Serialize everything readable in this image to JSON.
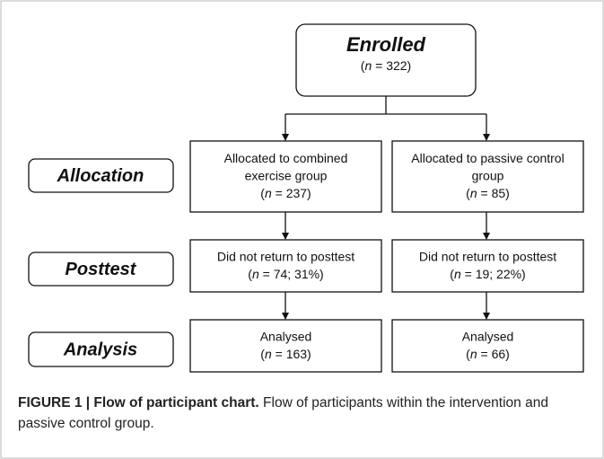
{
  "enrolled": {
    "title": "Enrolled",
    "count": [
      "(",
      "n",
      " = 322)"
    ]
  },
  "rows": [
    {
      "label": "Allocation",
      "left": [
        [
          "Allocated to combined"
        ],
        [
          "exercise group"
        ],
        [
          "(",
          "n",
          " = 237)"
        ]
      ],
      "right": [
        [
          "Allocated to passive control"
        ],
        [
          "group"
        ],
        [
          "(",
          "n",
          " = 85)"
        ]
      ]
    },
    {
      "label": "Posttest",
      "left": [
        [
          "Did not return to posttest"
        ],
        [
          "(",
          "n",
          " = 74; 31%)"
        ]
      ],
      "right": [
        [
          "Did not return to posttest"
        ],
        [
          "(",
          "n",
          " = 19; 22%)"
        ]
      ]
    },
    {
      "label": "Analysis",
      "left": [
        [
          "Analysed"
        ],
        [
          "(",
          "n",
          " = 163)"
        ]
      ],
      "right": [
        [
          "Analysed"
        ],
        [
          "(",
          "n",
          " = 66)"
        ]
      ]
    }
  ],
  "caption": {
    "heading": "FIGURE 1 | Flow of participant chart.",
    "text": " Flow of participants within the intervention and passive control group."
  }
}
